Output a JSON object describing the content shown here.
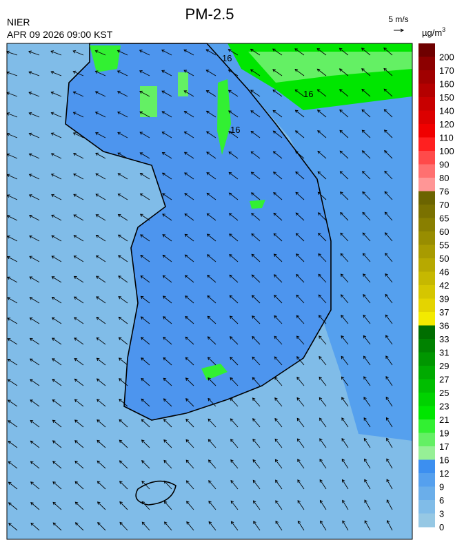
{
  "header": {
    "title": "PM-2.5",
    "source": "NIER",
    "datetime": "APR 09 2026 09:00 KST",
    "wind_scale": "5 m/s"
  },
  "map": {
    "contour_labels": [
      "16",
      "16",
      "16"
    ]
  },
  "legend": {
    "unit_base": "µg/m",
    "unit_exp": "3",
    "items": [
      {
        "label": 200,
        "color": "#6e0000"
      },
      {
        "label": 170,
        "color": "#8c0000"
      },
      {
        "label": 160,
        "color": "#a00000"
      },
      {
        "label": 150,
        "color": "#b40000"
      },
      {
        "label": 140,
        "color": "#c80000"
      },
      {
        "label": 120,
        "color": "#dc0000"
      },
      {
        "label": 110,
        "color": "#f00000"
      },
      {
        "label": 100,
        "color": "#ff2020"
      },
      {
        "label": 90,
        "color": "#ff4a4a"
      },
      {
        "label": 80,
        "color": "#ff7070"
      },
      {
        "label": 76,
        "color": "#ff9696"
      },
      {
        "label": 70,
        "color": "#6b6400"
      },
      {
        "label": 65,
        "color": "#7a7100"
      },
      {
        "label": 60,
        "color": "#897f00"
      },
      {
        "label": 55,
        "color": "#988d00"
      },
      {
        "label": 50,
        "color": "#a89b00"
      },
      {
        "label": 46,
        "color": "#b7a900"
      },
      {
        "label": 42,
        "color": "#c6b800"
      },
      {
        "label": 39,
        "color": "#d5c600"
      },
      {
        "label": 37,
        "color": "#e4d400"
      },
      {
        "label": 36,
        "color": "#f3ea00"
      },
      {
        "label": 33,
        "color": "#006e00"
      },
      {
        "label": 31,
        "color": "#008200"
      },
      {
        "label": 29,
        "color": "#009600"
      },
      {
        "label": 27,
        "color": "#00aa00"
      },
      {
        "label": 25,
        "color": "#00be00"
      },
      {
        "label": 23,
        "color": "#00d200"
      },
      {
        "label": 21,
        "color": "#00e600"
      },
      {
        "label": 19,
        "color": "#32f032"
      },
      {
        "label": 17,
        "color": "#64f064"
      },
      {
        "label": 16,
        "color": "#96f096"
      },
      {
        "label": 12,
        "color": "#3c8ff0"
      },
      {
        "label": 9,
        "color": "#55a0ee"
      },
      {
        "label": 6,
        "color": "#6aaeea"
      },
      {
        "label": 3,
        "color": "#80bce8"
      },
      {
        "label": 0,
        "color": "#96c8e4"
      }
    ]
  }
}
